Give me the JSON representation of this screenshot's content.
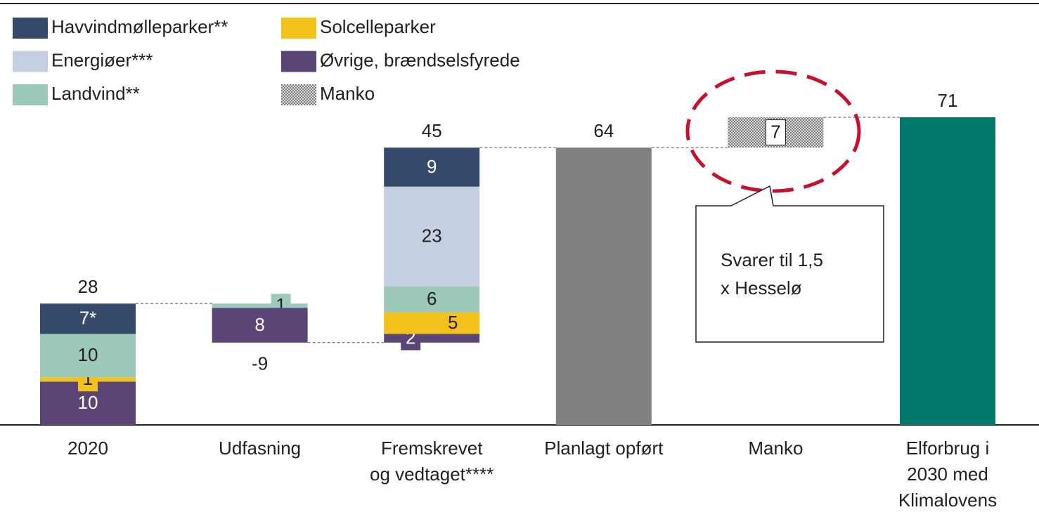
{
  "chart_data": {
    "type": "waterfall",
    "categories": [
      [
        "2020"
      ],
      [
        "Udfasning"
      ],
      [
        "Fremskrevet",
        "og vedtaget****"
      ],
      [
        "Planlagt opført"
      ],
      [
        "Manko"
      ],
      [
        "Elforbrug i",
        "2030 med",
        "Klimalovens"
      ]
    ],
    "series": [
      {
        "name": "Havvindmølleparker**",
        "color": "#354a6b",
        "values": [
          7,
          null,
          9,
          null,
          null,
          null
        ],
        "value_labels": [
          "7*",
          null,
          "9",
          null,
          null,
          null
        ]
      },
      {
        "name": "Energiøer***",
        "color": "#c5cfe2",
        "values": [
          null,
          null,
          23,
          null,
          null,
          null
        ]
      },
      {
        "name": "Landvind**",
        "color": "#9dc9bb",
        "values": [
          10,
          -1,
          6,
          null,
          null,
          null
        ],
        "value_labels": [
          "10",
          "1",
          "6",
          null,
          null,
          null
        ]
      },
      {
        "name": "Solcelleparker",
        "color": "#f2c11c",
        "values": [
          1,
          null,
          5,
          null,
          null,
          null
        ]
      },
      {
        "name": "Øvrige, brændselsfyrede",
        "color": "#5b4577",
        "values": [
          10,
          -8,
          2,
          null,
          null,
          null
        ],
        "value_labels": [
          "10",
          "8",
          "2",
          null,
          null,
          null
        ]
      },
      {
        "name": "Manko",
        "color": "pattern",
        "values": [
          null,
          null,
          null,
          null,
          7,
          null
        ]
      }
    ],
    "totals": [
      28,
      -9,
      45,
      64,
      null,
      71
    ],
    "total_colors": [
      null,
      null,
      null,
      "#808080",
      null,
      "#00796b"
    ],
    "ylim": [
      0,
      71
    ],
    "annotation": [
      "Svarer til 1,5",
      "x Hesselø"
    ]
  }
}
